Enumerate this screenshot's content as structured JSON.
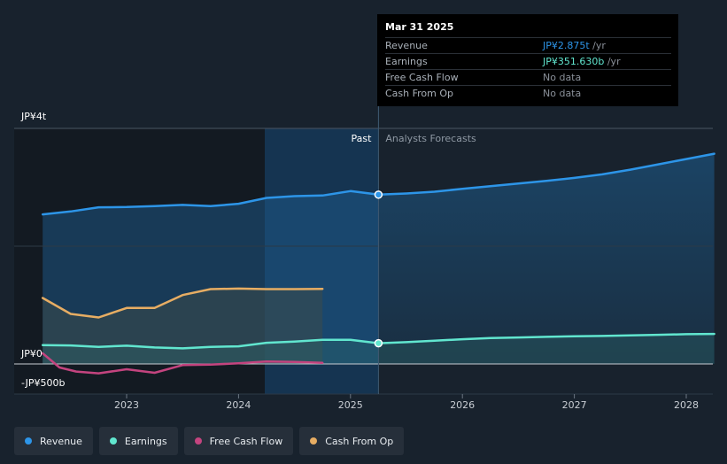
{
  "tooltip": {
    "date": "Mar 31 2025",
    "rows": [
      {
        "label": "Revenue",
        "value": "JP¥2.875t",
        "unit": " /yr",
        "color": "#2d95e8"
      },
      {
        "label": "Earnings",
        "value": "JP¥351.630b",
        "unit": " /yr",
        "color": "#61e6cf"
      },
      {
        "label": "Free Cash Flow",
        "value": "No data",
        "unit": "",
        "color": "#8a9099"
      },
      {
        "label": "Cash From Op",
        "value": "No data",
        "unit": "",
        "color": "#8a9099"
      }
    ]
  },
  "legend": [
    {
      "label": "Revenue",
      "color": "#2d95e8"
    },
    {
      "label": "Earnings",
      "color": "#61e6cf"
    },
    {
      "label": "Free Cash Flow",
      "color": "#c4447f"
    },
    {
      "label": "Cash From Op",
      "color": "#e7ad63"
    }
  ],
  "chart_data": {
    "type": "line",
    "y_tick_labels": [
      "JP¥4t",
      "JP¥0",
      "-JP¥500b"
    ],
    "y_range_billion": [
      -500,
      4000
    ],
    "x_tick_labels": [
      "2023",
      "2024",
      "2025",
      "2026",
      "2027",
      "2028"
    ],
    "x_range": [
      2022.25,
      2028.25
    ],
    "past_label": "Past",
    "forecast_label": "Analysts Forecasts",
    "divider_x": 2025.25,
    "units": "JP¥ billions",
    "series": [
      {
        "name": "Revenue",
        "color": "#2d95e8",
        "x": [
          2022.25,
          2022.5,
          2022.75,
          2023.0,
          2023.25,
          2023.5,
          2023.75,
          2024.0,
          2024.25,
          2024.5,
          2024.75,
          2025.0,
          2025.25,
          2025.5,
          2025.75,
          2026.0,
          2026.25,
          2026.5,
          2026.75,
          2027.0,
          2027.25,
          2027.5,
          2027.75,
          2028.0,
          2028.25
        ],
        "y": [
          2540,
          2590,
          2660,
          2665,
          2680,
          2700,
          2680,
          2720,
          2820,
          2850,
          2860,
          2935,
          2875,
          2895,
          2925,
          2975,
          3020,
          3065,
          3110,
          3160,
          3220,
          3300,
          3390,
          3480,
          3570
        ]
      },
      {
        "name": "Earnings",
        "color": "#61e6cf",
        "x": [
          2022.25,
          2022.5,
          2022.75,
          2023.0,
          2023.25,
          2023.5,
          2023.75,
          2024.0,
          2024.25,
          2024.5,
          2024.75,
          2025.0,
          2025.25,
          2025.5,
          2025.75,
          2026.0,
          2026.25,
          2026.5,
          2026.75,
          2027.0,
          2027.25,
          2027.5,
          2027.75,
          2028.0,
          2028.25
        ],
        "y": [
          320,
          315,
          290,
          310,
          280,
          265,
          290,
          300,
          360,
          380,
          410,
          410,
          352,
          370,
          395,
          420,
          440,
          450,
          460,
          470,
          475,
          485,
          495,
          505,
          510
        ]
      },
      {
        "name": "Free Cash Flow",
        "color": "#c4447f",
        "x": [
          2022.25,
          2022.4,
          2022.55,
          2022.75,
          2023.0,
          2023.25,
          2023.5,
          2023.75,
          2024.0,
          2024.25,
          2024.5,
          2024.75
        ],
        "y": [
          180,
          -60,
          -130,
          -160,
          -90,
          -150,
          -20,
          -10,
          10,
          40,
          35,
          20
        ]
      },
      {
        "name": "Cash From Op",
        "color": "#e7ad63",
        "x": [
          2022.25,
          2022.5,
          2022.75,
          2023.0,
          2023.25,
          2023.5,
          2023.75,
          2024.0,
          2024.25,
          2024.5,
          2024.75
        ],
        "y": [
          1120,
          850,
          790,
          950,
          950,
          1170,
          1270,
          1280,
          1270,
          1270,
          1275
        ]
      }
    ]
  }
}
